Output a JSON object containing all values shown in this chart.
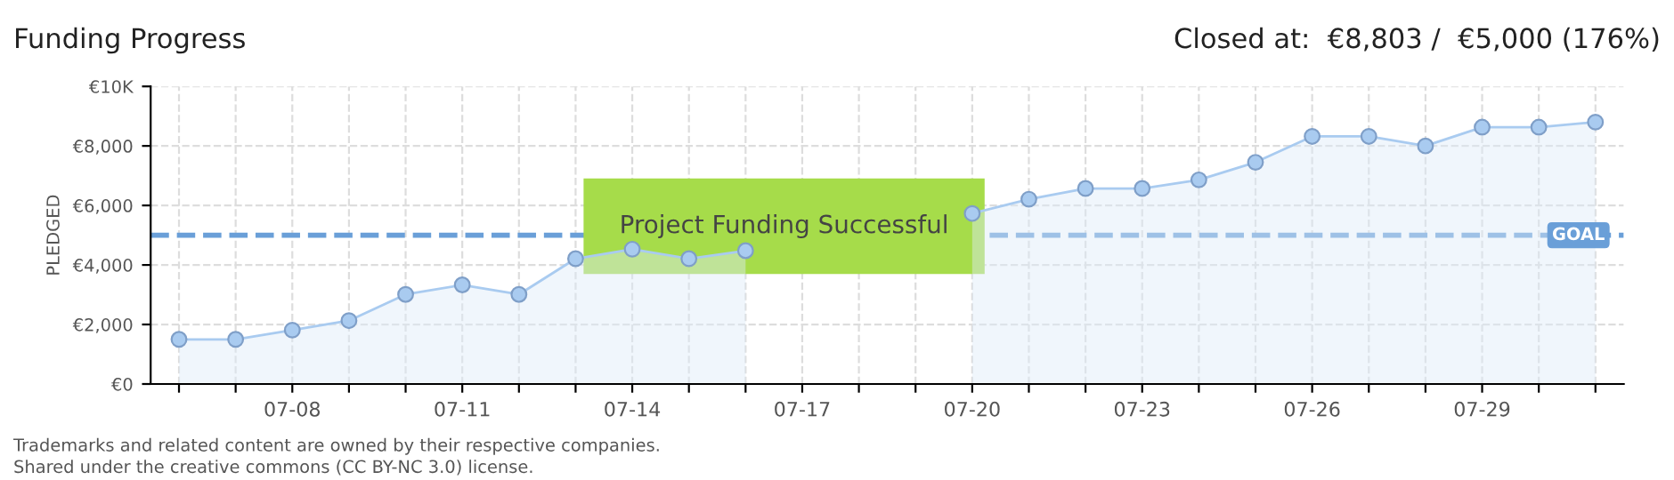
{
  "chart_data": {
    "type": "area",
    "title": "Funding Progress",
    "ylabel": "PLEDGED",
    "categories": [
      null,
      null,
      "07-08",
      null,
      null,
      "07-11",
      null,
      null,
      "07-14",
      null,
      null,
      "07-17",
      null,
      null,
      "07-20",
      null,
      null,
      "07-23",
      null,
      null,
      "07-26",
      null,
      null,
      "07-29",
      null,
      null
    ],
    "series": [
      {
        "color": "#a9cbf0",
        "values": [
          1500,
          1500,
          1810,
          2130,
          3010,
          3330,
          3010,
          4210,
          4530,
          4210,
          4480,
          null,
          null,
          null,
          5730,
          6210,
          6570,
          6570,
          6860,
          7450,
          8320,
          8320,
          8000,
          8630,
          8630,
          8800
        ]
      }
    ],
    "ylim": [
      0,
      10000
    ],
    "yticks": [
      {
        "value": 0,
        "label": "€0"
      },
      {
        "value": 2000,
        "label": "€2,000"
      },
      {
        "value": 4000,
        "label": "€4,000"
      },
      {
        "value": 6000,
        "label": "€6,000"
      },
      {
        "value": 8000,
        "label": "€8,000"
      },
      {
        "value": 10000,
        "label": "€10K"
      }
    ],
    "ref_lines": [
      {
        "axis": "y",
        "value": 5000,
        "label": "GOAL",
        "color": "#6a9fd8",
        "line_style": "dashed"
      }
    ],
    "annotations": [
      "Closed at:  €8,803 /  €5,000 (176%)",
      "Project Funding Successful",
      "Trademarks and related content are owned by their respective companies.",
      "Shared under the creative commons (CC BY-NC 3.0) license."
    ],
    "grid": true,
    "marker": "circle",
    "legend": false
  }
}
